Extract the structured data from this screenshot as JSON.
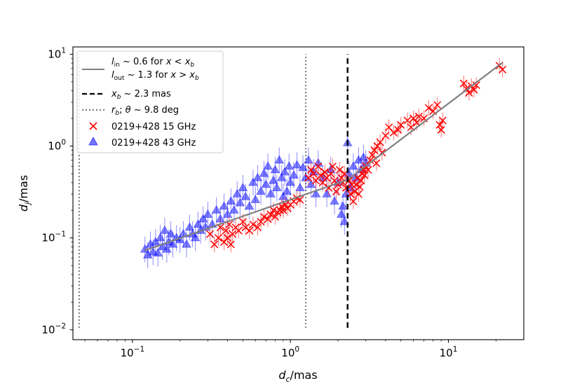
{
  "chart_data": {
    "type": "scatter",
    "xscale": "log",
    "yscale": "log",
    "xlim": [
      0.042,
      30
    ],
    "ylim": [
      0.0078,
      12
    ],
    "grid": false,
    "legend_placement": "top-left",
    "x_ticks": [
      {
        "value": 0.1,
        "base": "10",
        "exp": "−1"
      },
      {
        "value": 1,
        "base": "10",
        "exp": "0"
      },
      {
        "value": 10,
        "base": "10",
        "exp": "1"
      }
    ],
    "y_ticks": [
      {
        "value": 0.01,
        "base": "10",
        "exp": "−2"
      },
      {
        "value": 0.1,
        "base": "10",
        "exp": "−1"
      },
      {
        "value": 1,
        "base": "10",
        "exp": "0"
      },
      {
        "value": 10,
        "base": "10",
        "exp": "1"
      }
    ],
    "xlabel": {
      "var": "d",
      "sub": "c",
      "unit": "/mas"
    },
    "ylabel": {
      "var": "d",
      "sub": "j",
      "unit": "/mas"
    },
    "colors": {
      "fit": "#808080",
      "break": "#000000",
      "dotted": "#808080",
      "s15": "#ff0000",
      "s43": "#0000ff"
    },
    "legend": {
      "fit_line1": {
        "pre": "l",
        "sub": "in",
        "mid": " ~ 0.6 for ",
        "x": "x",
        "lt": " < ",
        "xb": "x",
        "xbsub": "b"
      },
      "fit_line2": {
        "pre": "l",
        "sub": "out",
        "mid": " ~ 1.3 for ",
        "x": "x",
        "gt": " > ",
        "xb": "x",
        "xbsub": "b"
      },
      "break": {
        "var": "x",
        "sub": "b",
        "rest": " ~ 2.3 mas"
      },
      "dotted": {
        "var": "r",
        "sub": "b",
        "sep": ";  ",
        "theta": "θ",
        "rest": " ~ 9.8 deg"
      },
      "s15": "0219+428 15 GHz",
      "s43": "0219+428 43 GHz"
    },
    "fit_line": {
      "x_break": 2.3,
      "y_break": 0.43,
      "slope_in": 0.6,
      "slope_out": 1.3,
      "x_start": 0.12,
      "x_end": 22
    },
    "vlines": {
      "break_x": 2.3,
      "break_y": [
        0.0105,
        10
      ],
      "dotted_x": [
        0.046,
        1.25
      ],
      "dotted_y": [
        0.0105,
        10
      ]
    },
    "series": [
      {
        "name": "0219+428 15 GHz",
        "marker": "x",
        "points": [
          [
            0.31,
            0.11
          ],
          [
            0.33,
            0.085
          ],
          [
            0.35,
            0.1
          ],
          [
            0.36,
            0.13
          ],
          [
            0.38,
            0.09
          ],
          [
            0.39,
            0.12
          ],
          [
            0.4,
            0.1
          ],
          [
            0.41,
            0.14
          ],
          [
            0.42,
            0.085
          ],
          [
            0.43,
            0.11
          ],
          [
            0.45,
            0.13
          ],
          [
            0.47,
            0.12
          ],
          [
            0.5,
            0.15
          ],
          [
            0.52,
            0.13
          ],
          [
            0.55,
            0.12
          ],
          [
            0.58,
            0.14
          ],
          [
            0.62,
            0.13
          ],
          [
            0.65,
            0.15
          ],
          [
            0.68,
            0.17
          ],
          [
            0.72,
            0.16
          ],
          [
            0.75,
            0.18
          ],
          [
            0.78,
            0.2
          ],
          [
            0.8,
            0.17
          ],
          [
            0.83,
            0.19
          ],
          [
            0.86,
            0.2
          ],
          [
            0.88,
            0.22
          ],
          [
            0.9,
            0.2
          ],
          [
            0.93,
            0.23
          ],
          [
            0.96,
            0.21
          ],
          [
            1.0,
            0.23
          ],
          [
            1.05,
            0.25
          ],
          [
            1.1,
            0.27
          ],
          [
            1.15,
            0.26
          ],
          [
            1.3,
            0.45
          ],
          [
            1.35,
            0.55
          ],
          [
            1.4,
            0.5
          ],
          [
            1.45,
            0.42
          ],
          [
            1.5,
            0.6
          ],
          [
            1.55,
            0.48
          ],
          [
            1.6,
            0.4
          ],
          [
            1.65,
            0.52
          ],
          [
            1.7,
            0.45
          ],
          [
            1.75,
            0.35
          ],
          [
            1.8,
            0.5
          ],
          [
            1.85,
            0.6
          ],
          [
            1.9,
            0.42
          ],
          [
            1.95,
            0.32
          ],
          [
            2.0,
            0.38
          ],
          [
            2.05,
            0.55
          ],
          [
            2.1,
            0.45
          ],
          [
            2.15,
            0.4
          ],
          [
            2.2,
            0.5
          ],
          [
            2.25,
            0.35
          ],
          [
            2.35,
            0.42
          ],
          [
            2.4,
            0.3
          ],
          [
            2.45,
            0.38
          ],
          [
            2.5,
            0.25
          ],
          [
            2.55,
            0.32
          ],
          [
            2.6,
            0.38
          ],
          [
            2.65,
            0.45
          ],
          [
            2.7,
            0.3
          ],
          [
            2.75,
            0.36
          ],
          [
            2.8,
            0.42
          ],
          [
            2.85,
            0.5
          ],
          [
            2.9,
            0.55
          ],
          [
            2.95,
            0.48
          ],
          [
            3.0,
            0.6
          ],
          [
            3.1,
            0.55
          ],
          [
            3.2,
            0.7
          ],
          [
            3.3,
            0.8
          ],
          [
            3.4,
            0.9
          ],
          [
            3.5,
            0.65
          ],
          [
            3.55,
            1.0
          ],
          [
            3.7,
            1.1
          ],
          [
            3.8,
            0.85
          ],
          [
            4.0,
            1.3
          ],
          [
            4.2,
            1.6
          ],
          [
            4.5,
            1.4
          ],
          [
            4.8,
            1.5
          ],
          [
            5.0,
            1.7
          ],
          [
            5.5,
            1.9
          ],
          [
            5.8,
            1.6
          ],
          [
            6.0,
            2.0
          ],
          [
            6.3,
            1.8
          ],
          [
            6.5,
            2.1
          ],
          [
            7.0,
            2.0
          ],
          [
            7.5,
            2.6
          ],
          [
            8.0,
            2.4
          ],
          [
            8.5,
            2.8
          ],
          [
            8.8,
            1.7
          ],
          [
            9.0,
            1.5
          ],
          [
            9.2,
            1.9
          ],
          [
            12.5,
            4.8
          ],
          [
            13.0,
            4.2
          ],
          [
            13.5,
            3.8
          ],
          [
            14.0,
            4.5
          ],
          [
            14.5,
            4.1
          ],
          [
            15.0,
            4.6
          ],
          [
            21.0,
            7.5
          ],
          [
            22.0,
            6.8
          ]
        ]
      },
      {
        "name": "0219+428 43 GHz",
        "marker": "^",
        "points": [
          [
            0.12,
            0.075
          ],
          [
            0.125,
            0.065
          ],
          [
            0.13,
            0.085
          ],
          [
            0.135,
            0.07
          ],
          [
            0.14,
            0.09
          ],
          [
            0.145,
            0.068
          ],
          [
            0.15,
            0.1
          ],
          [
            0.155,
            0.08
          ],
          [
            0.16,
            0.12
          ],
          [
            0.165,
            0.075
          ],
          [
            0.17,
            0.09
          ],
          [
            0.175,
            0.11
          ],
          [
            0.18,
            0.085
          ],
          [
            0.19,
            0.1
          ],
          [
            0.2,
            0.095
          ],
          [
            0.21,
            0.11
          ],
          [
            0.22,
            0.085
          ],
          [
            0.23,
            0.13
          ],
          [
            0.24,
            0.11
          ],
          [
            0.25,
            0.1
          ],
          [
            0.26,
            0.14
          ],
          [
            0.27,
            0.12
          ],
          [
            0.28,
            0.16
          ],
          [
            0.29,
            0.13
          ],
          [
            0.3,
            0.18
          ],
          [
            0.32,
            0.14
          ],
          [
            0.34,
            0.2
          ],
          [
            0.36,
            0.16
          ],
          [
            0.38,
            0.22
          ],
          [
            0.4,
            0.18
          ],
          [
            0.42,
            0.25
          ],
          [
            0.44,
            0.2
          ],
          [
            0.46,
            0.3
          ],
          [
            0.48,
            0.24
          ],
          [
            0.5,
            0.35
          ],
          [
            0.52,
            0.28
          ],
          [
            0.55,
            0.22
          ],
          [
            0.58,
            0.4
          ],
          [
            0.6,
            0.26
          ],
          [
            0.62,
            0.45
          ],
          [
            0.65,
            0.32
          ],
          [
            0.68,
            0.5
          ],
          [
            0.7,
            0.38
          ],
          [
            0.72,
            0.6
          ],
          [
            0.75,
            0.3
          ],
          [
            0.78,
            0.42
          ],
          [
            0.8,
            0.55
          ],
          [
            0.82,
            0.35
          ],
          [
            0.85,
            0.7
          ],
          [
            0.88,
            0.45
          ],
          [
            0.9,
            0.28
          ],
          [
            0.92,
            0.52
          ],
          [
            0.95,
            0.32
          ],
          [
            0.98,
            0.6
          ],
          [
            1.0,
            0.4
          ],
          [
            1.05,
            0.48
          ],
          [
            1.1,
            0.62
          ],
          [
            1.15,
            0.35
          ],
          [
            1.2,
            0.58
          ],
          [
            1.25,
            0.45
          ],
          [
            1.3,
            0.7
          ],
          [
            1.35,
            0.38
          ],
          [
            1.4,
            0.52
          ],
          [
            1.45,
            0.3
          ],
          [
            1.5,
            0.65
          ],
          [
            1.6,
            0.45
          ],
          [
            1.7,
            0.3
          ],
          [
            1.8,
            0.55
          ],
          [
            1.9,
            0.25
          ],
          [
            2.0,
            0.4
          ],
          [
            2.1,
            0.18
          ],
          [
            2.15,
            0.22
          ],
          [
            2.2,
            0.15
          ],
          [
            2.25,
            0.3
          ],
          [
            2.3,
            1.08
          ],
          [
            2.35,
            0.5
          ],
          [
            2.4,
            0.35
          ],
          [
            2.5,
            0.6
          ],
          [
            2.6,
            0.45
          ],
          [
            2.7,
            0.7
          ],
          [
            2.8,
            0.55
          ],
          [
            2.9,
            0.75
          ],
          [
            3.0,
            0.65
          ]
        ]
      }
    ]
  }
}
